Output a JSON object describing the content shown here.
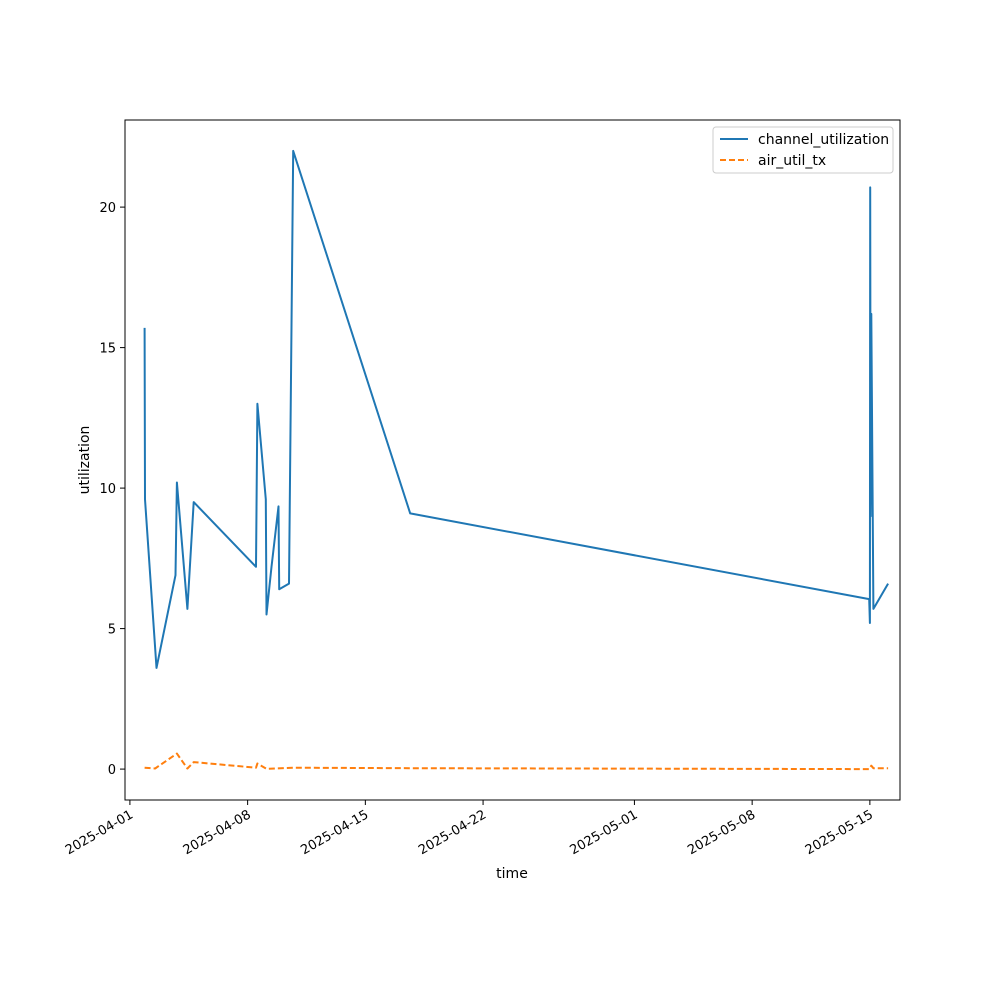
{
  "chart_data": {
    "type": "line",
    "xlabel": "time",
    "ylabel": "utilization",
    "x_is_date": true,
    "xlim": [
      "2025-03-31T17:00",
      "2025-05-16T19:00"
    ],
    "ylim": [
      -1.1,
      23.1
    ],
    "x_ticks": [
      "2025-04-01",
      "2025-04-08",
      "2025-04-15",
      "2025-04-22",
      "2025-05-01",
      "2025-05-08",
      "2025-05-15"
    ],
    "y_ticks": [
      0,
      5,
      10,
      15,
      20
    ],
    "grid": false,
    "legend_position": "top-right",
    "series": [
      {
        "name": "channel_utilization",
        "color": "#1f77b4",
        "style": "solid",
        "points": [
          [
            "2025-04-01T21:00",
            15.7
          ],
          [
            "2025-04-01T21:30",
            9.6
          ],
          [
            "2025-04-02T14:00",
            3.6
          ],
          [
            "2025-04-03T17:00",
            6.9
          ],
          [
            "2025-04-03T19:00",
            10.2
          ],
          [
            "2025-04-04T10:00",
            5.7
          ],
          [
            "2025-04-04T19:00",
            9.5
          ],
          [
            "2025-04-08T12:00",
            7.2
          ],
          [
            "2025-04-08T14:00",
            13.0
          ],
          [
            "2025-04-09T02:00",
            9.6
          ],
          [
            "2025-04-09T03:00",
            5.5
          ],
          [
            "2025-04-09T10:00",
            7.2
          ],
          [
            "2025-04-09T20:00",
            9.35
          ],
          [
            "2025-04-09T21:00",
            6.4
          ],
          [
            "2025-04-10T11:00",
            6.6
          ],
          [
            "2025-04-10T14:00",
            14.3
          ],
          [
            "2025-04-10T17:00",
            22.0
          ],
          [
            "2025-04-17T16:00",
            9.1
          ],
          [
            "2025-05-14T23:00",
            6.05
          ],
          [
            "2025-05-15T00:00",
            5.2
          ],
          [
            "2025-05-15T00:30",
            20.7
          ],
          [
            "2025-05-15T01:00",
            9.0
          ],
          [
            "2025-05-15T02:00",
            16.2
          ],
          [
            "2025-05-15T05:00",
            5.7
          ],
          [
            "2025-05-16T02:00",
            6.6
          ]
        ]
      },
      {
        "name": "air_util_tx",
        "color": "#ff7f0e",
        "style": "dashed",
        "points": [
          [
            "2025-04-01T21:00",
            0.05
          ],
          [
            "2025-04-02T12:00",
            0.02
          ],
          [
            "2025-04-03T19:00",
            0.55
          ],
          [
            "2025-04-04T10:00",
            0.02
          ],
          [
            "2025-04-04T19:00",
            0.25
          ],
          [
            "2025-04-08T12:00",
            0.05
          ],
          [
            "2025-04-08T14:00",
            0.2
          ],
          [
            "2025-04-09T03:00",
            0.01
          ],
          [
            "2025-04-10T17:00",
            0.05
          ],
          [
            "2025-04-17T16:00",
            0.03
          ],
          [
            "2025-05-14T23:00",
            0.0
          ],
          [
            "2025-05-15T02:00",
            0.12
          ],
          [
            "2025-05-15T05:00",
            0.03
          ],
          [
            "2025-05-16T02:00",
            0.03
          ]
        ]
      }
    ]
  }
}
